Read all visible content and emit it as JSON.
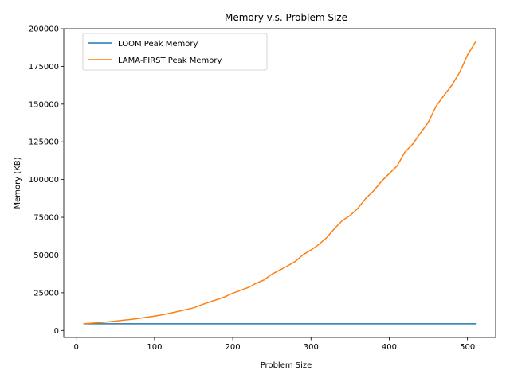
{
  "chart_data": {
    "type": "line",
    "title": "Memory v.s. Problem Size",
    "xlabel": "Problem Size",
    "ylabel": "Memory (KB)",
    "xlim": [
      -16,
      536
    ],
    "ylim": [
      -4600,
      200000
    ],
    "xticks": [
      0,
      100,
      200,
      300,
      400,
      500
    ],
    "yticks": [
      0,
      25000,
      50000,
      75000,
      100000,
      125000,
      150000,
      175000,
      200000
    ],
    "legend_position": "upper-left",
    "grid": false,
    "x": [
      10,
      20,
      30,
      40,
      50,
      60,
      70,
      80,
      90,
      100,
      110,
      120,
      130,
      140,
      150,
      160,
      170,
      180,
      190,
      200,
      210,
      220,
      230,
      240,
      250,
      260,
      270,
      280,
      290,
      300,
      310,
      320,
      330,
      340,
      350,
      360,
      370,
      380,
      390,
      400,
      410,
      420,
      430,
      440,
      450,
      460,
      470,
      480,
      490,
      500,
      510
    ],
    "series": [
      {
        "name": "LOOM Peak Memory",
        "color": "#1f77b4",
        "values": [
          4400,
          4400,
          4400,
          4400,
          4400,
          4400,
          4400,
          4400,
          4400,
          4400,
          4400,
          4400,
          4400,
          4400,
          4400,
          4400,
          4400,
          4400,
          4400,
          4400,
          4400,
          4400,
          4400,
          4400,
          4400,
          4400,
          4400,
          4400,
          4400,
          4400,
          4400,
          4400,
          4400,
          4400,
          4400,
          4400,
          4400,
          4400,
          4400,
          4400,
          4400,
          4400,
          4400,
          4400,
          4400,
          4400,
          4400,
          4400,
          4400,
          4400,
          4400
        ]
      },
      {
        "name": "LAMA-FIRST Peak Memory",
        "color": "#ff7f0e",
        "values": [
          4500,
          4800,
          5200,
          5700,
          6200,
          6800,
          7300,
          8000,
          8800,
          9500,
          10400,
          11500,
          12600,
          13800,
          15000,
          17000,
          18800,
          20500,
          22300,
          24700,
          26600,
          28500,
          31300,
          33500,
          37300,
          40000,
          42800,
          45800,
          50300,
          53300,
          57000,
          61500,
          67500,
          72800,
          76200,
          81000,
          87500,
          92500,
          98800,
          104000,
          109000,
          118200,
          123500,
          130800,
          138000,
          148700,
          155800,
          162500,
          171000,
          182500,
          191000
        ]
      }
    ]
  }
}
